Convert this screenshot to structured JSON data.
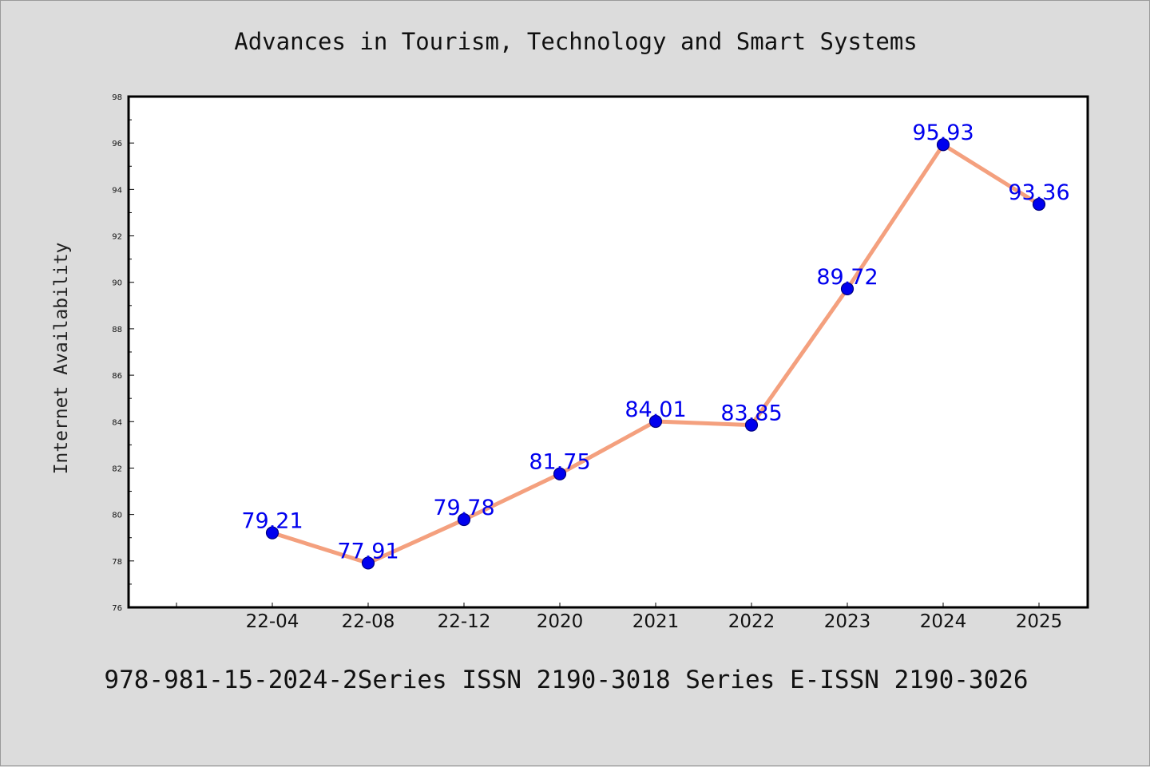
{
  "chart_data": {
    "type": "line",
    "title": "Advances in Tourism, Technology and Smart Systems",
    "ylabel": "Internet Availability",
    "xlabel": "",
    "categories": [
      "22-04",
      "22-08",
      "22-12",
      "2020",
      "2021",
      "2022",
      "2023",
      "2024",
      "2025"
    ],
    "series": [
      {
        "values": [
          79.21,
          77.91,
          79.78,
          81.75,
          84.01,
          83.85,
          89.72,
          95.93,
          93.36
        ]
      }
    ],
    "data_labels": [
      "79.21",
      "77.91",
      "79.78",
      "81.75",
      "84.01",
      "83.85",
      "89.72",
      "95.93",
      "93.36"
    ],
    "ylim": [
      76,
      98
    ],
    "yticks": [
      "76",
      "78",
      "80",
      "82",
      "84",
      "86",
      "88",
      "90",
      "92",
      "94",
      "96",
      "98"
    ],
    "grid": false,
    "legend": "none",
    "colors": {
      "line": "#f4a07e",
      "marker": "#0000ee",
      "marker_edge": "#000080",
      "data_label": "#0000ee",
      "background": "#dcdcdc",
      "plot_background": "#ffffff"
    }
  },
  "footer": "978-981-15-2024-2Series ISSN 2190-3018 Series E-ISSN 2190-3026"
}
